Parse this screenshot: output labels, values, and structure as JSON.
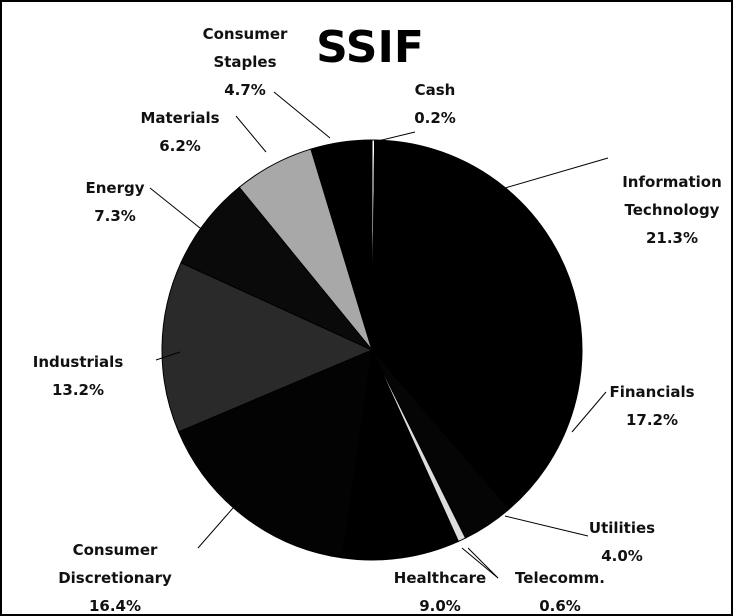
{
  "chart_data": {
    "type": "pie",
    "title": "SSIF",
    "categories": [
      "Cash",
      "Information Technology",
      "Financials",
      "Utilities",
      "Telecomm.",
      "Healthcare",
      "Consumer Discretionary",
      "Industrials",
      "Energy",
      "Materials",
      "Consumer Staples"
    ],
    "values": [
      0.2,
      21.3,
      17.2,
      4.0,
      0.6,
      9.0,
      16.4,
      13.2,
      7.3,
      6.2,
      4.7
    ],
    "value_labels": [
      "0.2%",
      "21.3%",
      "17.2%",
      "4.0%",
      "0.6%",
      "9.0%",
      "16.4%",
      "13.2%",
      "7.3%",
      "6.2%",
      "4.7%"
    ],
    "colors": [
      "#ffffff",
      "#000000",
      "#000000",
      "#050505",
      "#dddddd",
      "#000000",
      "#030303",
      "#2a2a2a",
      "#0a0a0a",
      "#a8a8a8",
      "#000000"
    ]
  }
}
